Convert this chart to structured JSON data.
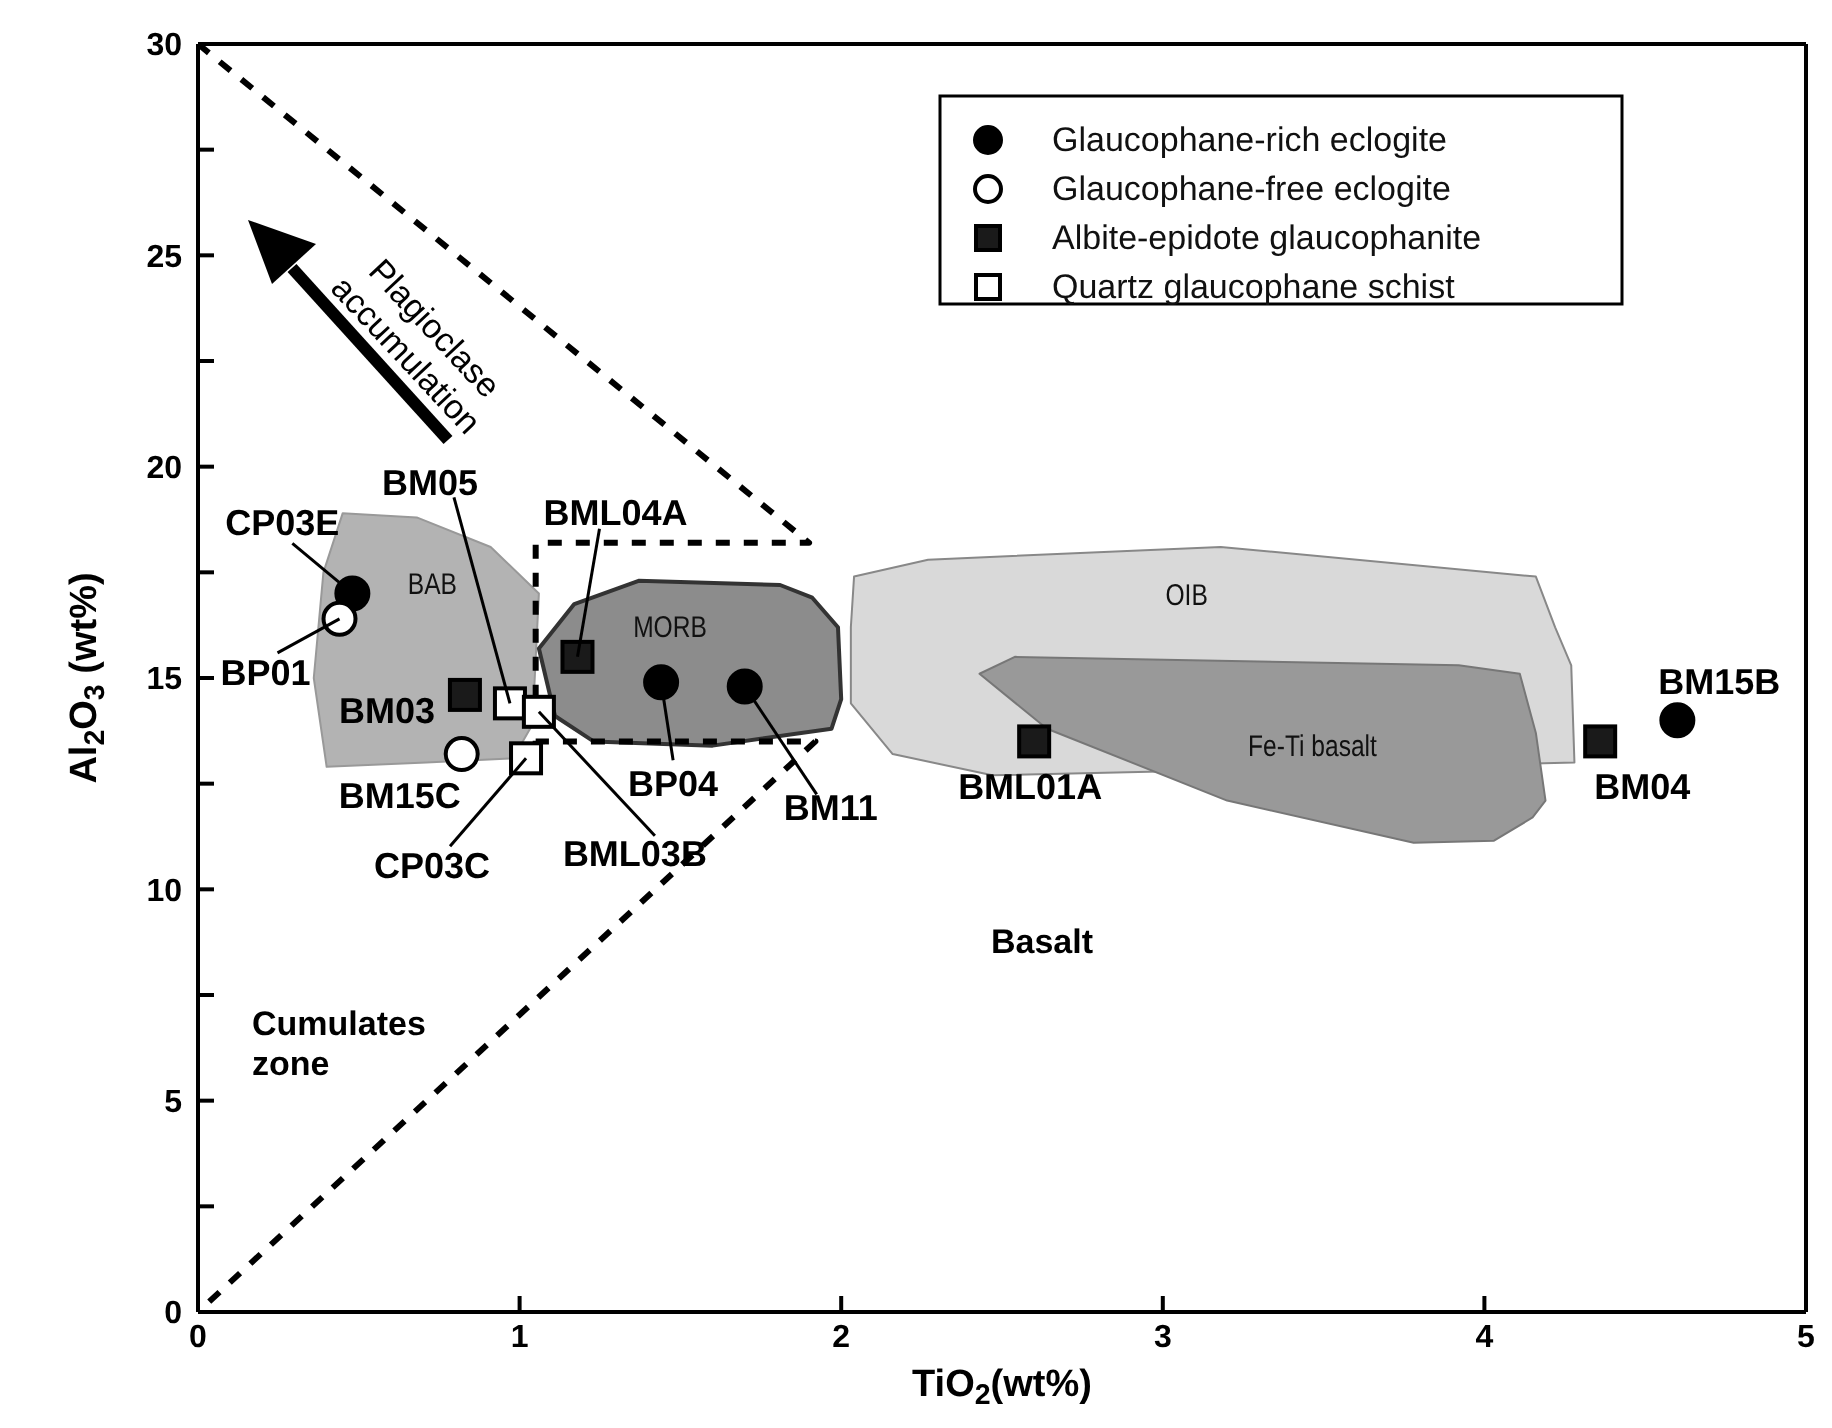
{
  "chart_data": {
    "type": "scatter",
    "xlabel": "TiO$_{2}$(wt%)",
    "ylabel": "Al$_{2}$O$_{3}$ (wt%)",
    "xlim": [
      0,
      5
    ],
    "xticks": [
      0,
      1,
      2,
      3,
      4,
      5
    ],
    "ylim": [
      0,
      30
    ],
    "yticks": [
      0,
      {
        "value": 2.5,
        "label": null
      },
      5,
      {
        "value": 7.5,
        "label": null
      },
      10,
      {
        "value": 12.5,
        "label": null
      },
      15,
      {
        "value": 17.5,
        "label": null
      },
      20,
      {
        "value": 22.5,
        "label": null
      },
      25,
      {
        "value": 27.5,
        "label": null
      },
      30
    ],
    "grid": false,
    "legend": "top right",
    "annotations": [
      "Plagioclase accumulation",
      "Basalt",
      "Cumulates zone"
    ],
    "series": [
      {
        "type": "area",
        "name": "OIB",
        "color": "#d9d9d9",
        "x": [
          2.04,
          2.27,
          3.18,
          4.16,
          4.22,
          4.27,
          4.28,
          2.47,
          2.16,
          2.03,
          2.03
        ],
        "values": [
          17.4,
          17.8,
          18.1,
          17.4,
          16.2,
          15.3,
          13.0,
          12.7,
          13.2,
          14.4,
          16.2
        ]
      },
      {
        "type": "area",
        "name": "Fe-Ti basalt",
        "color": "#999999",
        "x": [
          2.43,
          2.54,
          3.92,
          4.11,
          4.16,
          4.19,
          4.15,
          4.03,
          3.78,
          3.2,
          2.64
        ],
        "values": [
          15.1,
          15.5,
          15.3,
          15.1,
          13.7,
          12.1,
          11.7,
          11.15,
          11.1,
          12.1,
          13.8
        ]
      },
      {
        "type": "area",
        "name": "BAB",
        "color": "#b3b3b3",
        "x": [
          0.45,
          0.68,
          0.91,
          1.06,
          1.04,
          0.98,
          0.71,
          0.4,
          0.36,
          0.39
        ],
        "values": [
          18.9,
          18.8,
          18.1,
          17.0,
          13.9,
          13.1,
          13.0,
          12.9,
          15.0,
          17.5
        ]
      },
      {
        "type": "area",
        "name": "MORB",
        "color": "#8c8c8c",
        "x": [
          1.06,
          1.17,
          1.37,
          1.81,
          1.91,
          1.99,
          2.0,
          1.97,
          1.6,
          1.23,
          1.11
        ],
        "values": [
          15.7,
          16.75,
          17.3,
          17.2,
          16.9,
          16.2,
          14.5,
          13.8,
          13.4,
          13.5,
          14.1
        ]
      },
      {
        "type": "line",
        "line_style": "dashed",
        "color": "#000000",
        "x": [
          0,
          1.9,
          1.05,
          1.05,
          1.92,
          0
        ],
        "values": [
          30,
          18.2,
          18.2,
          13.5,
          13.5,
          0
        ]
      },
      {
        "name": "Glaucophane-rich eclogite",
        "marker": "circle",
        "color": "#000000",
        "x": [
          0.48,
          1.44,
          1.7,
          4.6
        ],
        "values": [
          17.0,
          14.9,
          14.8,
          14.0
        ],
        "value_labels": [
          "CP03E",
          "BP04",
          "BM11",
          "BM15B"
        ]
      },
      {
        "name": "Glaucophane-free eclogite",
        "marker": "circle",
        "color": "#ffffff",
        "x": [
          0.44,
          0.82
        ],
        "values": [
          16.4,
          13.2
        ],
        "value_labels": [
          "BP01",
          "BM15C"
        ]
      },
      {
        "name": "Albite-epidote glaucophanite",
        "marker": "square",
        "color": "#1a1a1a",
        "x": [
          0.83,
          1.18,
          2.6,
          4.36
        ],
        "values": [
          14.6,
          15.5,
          13.5,
          13.5
        ],
        "value_labels": [
          "BM03",
          "BML04A",
          "BML01A",
          "BM04"
        ]
      },
      {
        "name": "Quartz glaucophane schist",
        "marker": "square",
        "color": "#ffffff",
        "x": [
          0.97,
          1.06,
          1.02
        ],
        "values": [
          14.4,
          14.2,
          13.1
        ],
        "value_labels": [
          "BM05",
          "BML03B",
          "CP03C"
        ]
      }
    ]
  }
}
